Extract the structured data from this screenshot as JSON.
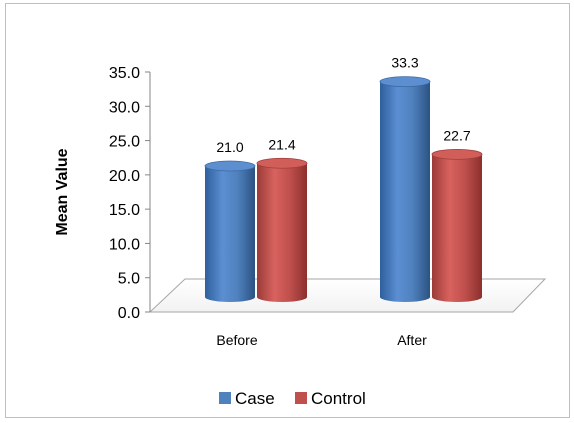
{
  "chart_data": {
    "type": "bar",
    "style": "3d-cylinder",
    "categories": [
      "Before",
      "After"
    ],
    "series": [
      {
        "name": "Case",
        "values": [
          21.0,
          33.3
        ],
        "color": "#4f81bd"
      },
      {
        "name": "Control",
        "values": [
          21.4,
          22.7
        ],
        "color": "#c0504d"
      }
    ],
    "data_labels": [
      [
        "21.0",
        "33.3"
      ],
      [
        "21.4",
        "22.7"
      ]
    ],
    "xlabel": "",
    "ylabel": "Mean Value",
    "ylim": [
      0,
      35
    ],
    "yticks": [
      "0.0",
      "5.0",
      "10.0",
      "15.0",
      "20.0",
      "25.0",
      "30.0",
      "35.0"
    ],
    "grid": false,
    "legend_position": "bottom"
  }
}
